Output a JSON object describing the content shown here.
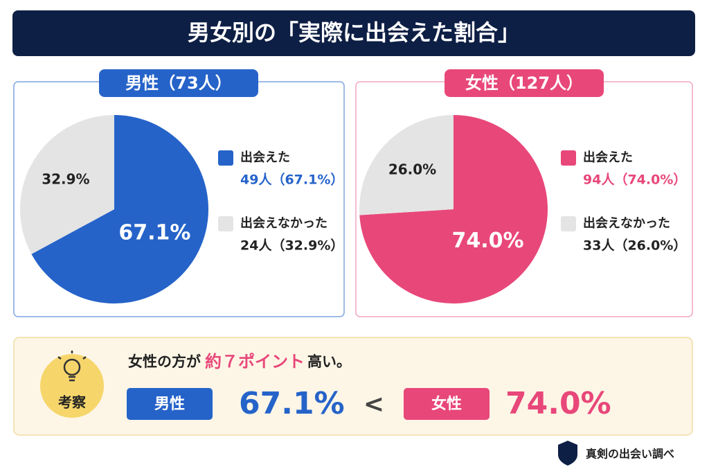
{
  "title": "男女別の「実際に出会えた割合」",
  "chart_data": [
    {
      "type": "pie",
      "title": "男性（73人）",
      "categories": [
        "出会えた",
        "出会えなかった"
      ],
      "values": [
        67.1,
        32.9
      ],
      "value_labels": [
        "67.1%",
        "32.9%"
      ],
      "colors": [
        "#2563c9",
        "#e4e4e4"
      ],
      "legend_details": [
        "49人（67.1%）",
        "24人（32.9%）"
      ]
    },
    {
      "type": "pie",
      "title": "女性（127人）",
      "categories": [
        "出会えた",
        "出会えなかった"
      ],
      "values": [
        74.0,
        26.0
      ],
      "value_labels": [
        "74.0%",
        "26.0%"
      ],
      "colors": [
        "#e8477a",
        "#e4e4e4"
      ],
      "legend_details": [
        "94人（74.0%）",
        "33人（26.0%）"
      ]
    }
  ],
  "summary": {
    "label": "考察",
    "text_before": "女性の方が",
    "highlight": "約７ポイント",
    "text_after": "高い。",
    "left_group": "男性",
    "left_value": "67.1%",
    "comparator": "<",
    "right_group": "女性",
    "right_value": "74.0%"
  },
  "footer": "真剣の出会い調べ"
}
